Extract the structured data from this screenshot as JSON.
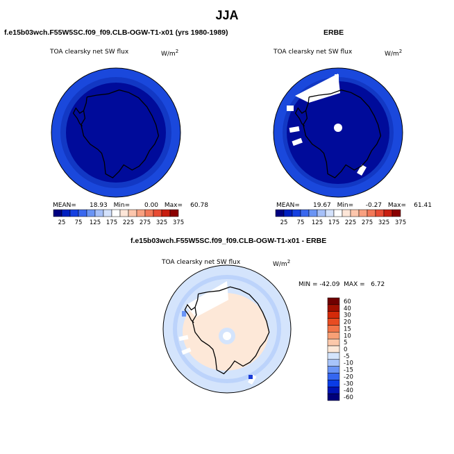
{
  "title": "JJA",
  "panels": [
    {
      "id": "model",
      "title": "f.e15b03wch.F55W5SC.f09_f09.CLB-OGW-T1-x01 (yrs 1980-1989)",
      "variable": "TOA clearsky net SW flux",
      "units_base": "W/m",
      "units_exp": "2",
      "stats": {
        "mean_label": "MEAN=",
        "mean": "18.93",
        "min_label": "Min=",
        "min": "0.00",
        "max_label": "Max=",
        "max": "60.78"
      }
    },
    {
      "id": "obs",
      "title": "ERBE",
      "variable": "TOA clearsky net SW flux",
      "units_base": "W/m",
      "units_exp": "2",
      "stats": {
        "mean_label": "MEAN=",
        "mean": "19.67",
        "min_label": "Min=",
        "min": "-0.27",
        "max_label": "Max=",
        "max": "61.41"
      }
    },
    {
      "id": "diff",
      "title": "f.e15b03wch.F55W5SC.f09_f09.CLB-OGW-T1-x01 - ERBE",
      "variable": "TOA clearsky net SW flux",
      "units_base": "W/m",
      "units_exp": "2",
      "stats_text": "MIN = -42.09  MAX =   6.72"
    }
  ],
  "colors": {
    "abs_scale": [
      "#000080",
      "#0020c0",
      "#1540e0",
      "#3a68ee",
      "#6a94f4",
      "#a6c0f8",
      "#d4e2fc",
      "#ffffff",
      "#fde6d8",
      "#fcc6ac",
      "#f8a080",
      "#f27858",
      "#e84c34",
      "#c81e10",
      "#8a0000"
    ],
    "diff_scale": [
      "#00007a",
      "#0014b4",
      "#0a3ce6",
      "#3566f0",
      "#6a94f6",
      "#a8c4fa",
      "#d4e4fc",
      "#fde8d8",
      "#fcc8aa",
      "#f8a076",
      "#f27448",
      "#e84c22",
      "#d42a0a",
      "#a01000",
      "#700000"
    ],
    "coastline": "#000000",
    "outline": "#000000"
  },
  "chart_data": [
    {
      "type": "heatmap",
      "title": "TOA clearsky net SW flux",
      "projection": "south polar stereographic",
      "colorbar_labels": [
        "25",
        "75",
        "125",
        "175",
        "225",
        "275",
        "325",
        "375"
      ],
      "colorbar_orientation": "horizontal",
      "field_summary": {
        "mean": 18.93,
        "min": 0.0,
        "max": 60.78
      }
    },
    {
      "type": "heatmap",
      "title": "TOA clearsky net SW flux",
      "projection": "south polar stereographic",
      "colorbar_labels": [
        "25",
        "75",
        "125",
        "175",
        "225",
        "275",
        "325",
        "375"
      ],
      "colorbar_orientation": "horizontal",
      "field_summary": {
        "mean": 19.67,
        "min": -0.27,
        "max": 61.41
      }
    },
    {
      "type": "heatmap",
      "title": "TOA clearsky net SW flux",
      "projection": "south polar stereographic",
      "colorbar_labels": [
        "60",
        "40",
        "30",
        "20",
        "15",
        "10",
        "5",
        "0",
        "-5",
        "-10",
        "-15",
        "-20",
        "-30",
        "-40",
        "-60"
      ],
      "colorbar_orientation": "vertical",
      "field_summary": {
        "min": -42.09,
        "max": 6.72
      }
    }
  ]
}
